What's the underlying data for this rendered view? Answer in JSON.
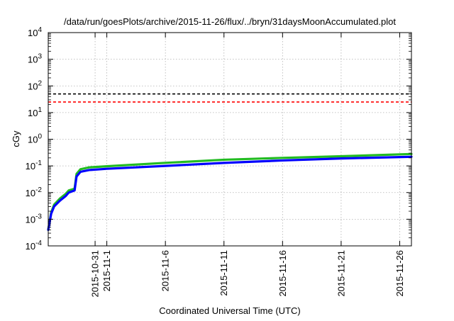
{
  "chart_data": {
    "type": "line",
    "title": "/data/run/goesPlots/archive/2015-11-26/flux/../bryn/31daysMoonAccumulated.plot",
    "xlabel": "Coordinated Universal Time (UTC)",
    "ylabel": "cGy",
    "yscale": "log",
    "grid": true,
    "x_range": [
      "2015-10-27",
      "2015-11-27"
    ],
    "ylim": [
      0.0001,
      10000
    ],
    "x_ticks": [
      {
        "date": "2015-10-31",
        "label": "2015-10-31"
      },
      {
        "date": "2015-11-01",
        "label": "2015-11-1"
      },
      {
        "date": "2015-11-06",
        "label": "2015-11-6"
      },
      {
        "date": "2015-11-11",
        "label": "2015-11-11"
      },
      {
        "date": "2015-11-16",
        "label": "2015-11-16"
      },
      {
        "date": "2015-11-21",
        "label": "2015-11-21"
      },
      {
        "date": "2015-11-26",
        "label": "2015-11-26"
      }
    ],
    "y_ticks": [
      {
        "value": 0.0001,
        "base": "10",
        "exp": "-4"
      },
      {
        "value": 0.001,
        "base": "10",
        "exp": "-3"
      },
      {
        "value": 0.01,
        "base": "10",
        "exp": "-2"
      },
      {
        "value": 0.1,
        "base": "10",
        "exp": "-1"
      },
      {
        "value": 1,
        "base": "10",
        "exp": "0"
      },
      {
        "value": 10,
        "base": "10",
        "exp": "1"
      },
      {
        "value": 100,
        "base": "10",
        "exp": "2"
      },
      {
        "value": 1000,
        "base": "10",
        "exp": "3"
      },
      {
        "value": 10000,
        "base": "10",
        "exp": "4"
      }
    ],
    "reference_lines": [
      {
        "value": 50,
        "color": "#000000",
        "style": "dashed"
      },
      {
        "value": 25,
        "color": "#ff0000",
        "style": "dashed"
      }
    ],
    "series": [
      {
        "color": "#22bb22",
        "points": [
          [
            "2015-10-27T00:00",
            0.0004
          ],
          [
            "2015-10-27T06:00",
            0.0018
          ],
          [
            "2015-10-27T12:00",
            0.0035
          ],
          [
            "2015-10-28T00:00",
            0.006
          ],
          [
            "2015-10-28T12:00",
            0.009
          ],
          [
            "2015-10-28T18:00",
            0.012
          ],
          [
            "2015-10-29T06:00",
            0.014
          ],
          [
            "2015-10-29T10:00",
            0.05
          ],
          [
            "2015-10-29T18:00",
            0.075
          ],
          [
            "2015-10-30T12:00",
            0.088
          ],
          [
            "2015-11-01T00:00",
            0.097
          ],
          [
            "2015-11-06T00:00",
            0.13
          ],
          [
            "2015-11-11T00:00",
            0.17
          ],
          [
            "2015-11-16T00:00",
            0.2
          ],
          [
            "2015-11-21T00:00",
            0.23
          ],
          [
            "2015-11-27T00:00",
            0.28
          ]
        ]
      },
      {
        "color": "#0000ff",
        "points": [
          [
            "2015-10-27T00:00",
            0.0004
          ],
          [
            "2015-10-27T06:00",
            0.0016
          ],
          [
            "2015-10-27T12:00",
            0.003
          ],
          [
            "2015-10-28T00:00",
            0.005
          ],
          [
            "2015-10-28T12:00",
            0.0075
          ],
          [
            "2015-10-28T18:00",
            0.01
          ],
          [
            "2015-10-29T06:00",
            0.012
          ],
          [
            "2015-10-29T10:00",
            0.04
          ],
          [
            "2015-10-29T18:00",
            0.06
          ],
          [
            "2015-10-30T12:00",
            0.07
          ],
          [
            "2015-11-01T00:00",
            0.078
          ],
          [
            "2015-11-06T00:00",
            0.1
          ],
          [
            "2015-11-11T00:00",
            0.13
          ],
          [
            "2015-11-16T00:00",
            0.16
          ],
          [
            "2015-11-21T00:00",
            0.19
          ],
          [
            "2015-11-27T00:00",
            0.22
          ]
        ]
      }
    ]
  }
}
